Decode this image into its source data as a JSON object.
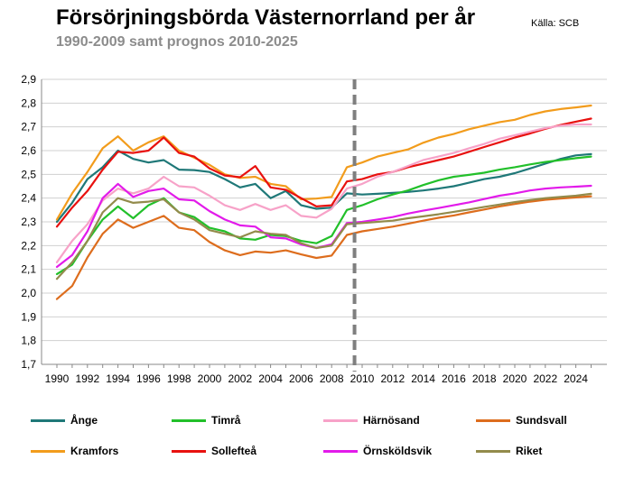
{
  "chart_data": {
    "type": "line",
    "title": "Försörjningsbörda Västernorrland per år",
    "subtitle": "1990-2009 samt prognos 2010-2025",
    "source": "Källa: SCB",
    "xlabel": "",
    "ylabel": "",
    "xlim": [
      1990,
      2025
    ],
    "ylim": [
      1.7,
      2.9
    ],
    "ytick_step": 0.1,
    "yticks": [
      "1,7",
      "1,8",
      "1,9",
      "2,0",
      "2,1",
      "2,2",
      "2,3",
      "2,4",
      "2,5",
      "2,6",
      "2,7",
      "2,8",
      "2,9"
    ],
    "xticks": [
      "1990",
      "1992",
      "1994",
      "1996",
      "1998",
      "2000",
      "2002",
      "2004",
      "2006",
      "2008",
      "2010",
      "2012",
      "2014",
      "2016",
      "2018",
      "2020",
      "2022",
      "2024"
    ],
    "grid": true,
    "forecast_divider_x": 2009.5,
    "legend_position": "bottom",
    "x": [
      1990,
      1991,
      1992,
      1993,
      1994,
      1995,
      1996,
      1997,
      1998,
      1999,
      2000,
      2001,
      2002,
      2003,
      2004,
      2005,
      2006,
      2007,
      2008,
      2009,
      2010,
      2011,
      2012,
      2013,
      2014,
      2015,
      2016,
      2017,
      2018,
      2019,
      2020,
      2021,
      2022,
      2023,
      2024,
      2025
    ],
    "series": [
      {
        "name": "Ånge",
        "color": "#1f7878",
        "values": [
          2.3,
          2.38,
          2.48,
          2.53,
          2.6,
          2.565,
          2.55,
          2.56,
          2.52,
          2.518,
          2.51,
          2.48,
          2.445,
          2.46,
          2.4,
          2.43,
          2.37,
          2.355,
          2.36,
          2.42,
          2.415,
          2.418,
          2.422,
          2.426,
          2.432,
          2.44,
          2.45,
          2.465,
          2.48,
          2.49,
          2.505,
          2.525,
          2.545,
          2.565,
          2.58,
          2.585
        ]
      },
      {
        "name": "Kramfors",
        "color": "#f29c1c",
        "values": [
          2.31,
          2.42,
          2.51,
          2.61,
          2.66,
          2.6,
          2.635,
          2.66,
          2.6,
          2.57,
          2.54,
          2.5,
          2.485,
          2.49,
          2.46,
          2.45,
          2.395,
          2.398,
          2.405,
          2.53,
          2.55,
          2.575,
          2.59,
          2.605,
          2.633,
          2.655,
          2.67,
          2.69,
          2.705,
          2.72,
          2.73,
          2.75,
          2.765,
          2.775,
          2.782,
          2.79
        ]
      },
      {
        "name": "Timrå",
        "color": "#22c02a",
        "values": [
          2.08,
          2.12,
          2.22,
          2.31,
          2.365,
          2.315,
          2.37,
          2.4,
          2.34,
          2.32,
          2.275,
          2.26,
          2.23,
          2.225,
          2.245,
          2.24,
          2.22,
          2.21,
          2.24,
          2.35,
          2.37,
          2.395,
          2.415,
          2.432,
          2.455,
          2.475,
          2.49,
          2.498,
          2.507,
          2.52,
          2.53,
          2.542,
          2.552,
          2.56,
          2.568,
          2.575
        ]
      },
      {
        "name": "Sollefteå",
        "color": "#e8110f",
        "values": [
          2.28,
          2.36,
          2.43,
          2.52,
          2.595,
          2.59,
          2.6,
          2.655,
          2.59,
          2.575,
          2.525,
          2.495,
          2.488,
          2.535,
          2.445,
          2.435,
          2.4,
          2.365,
          2.37,
          2.47,
          2.48,
          2.5,
          2.51,
          2.53,
          2.545,
          2.56,
          2.575,
          2.595,
          2.615,
          2.635,
          2.655,
          2.672,
          2.692,
          2.708,
          2.722,
          2.735
        ]
      },
      {
        "name": "Härnösand",
        "color": "#f7a2c8",
        "values": [
          2.13,
          2.22,
          2.29,
          2.39,
          2.44,
          2.42,
          2.44,
          2.49,
          2.45,
          2.445,
          2.41,
          2.37,
          2.35,
          2.375,
          2.35,
          2.37,
          2.325,
          2.318,
          2.355,
          2.44,
          2.46,
          2.49,
          2.51,
          2.535,
          2.56,
          2.575,
          2.59,
          2.61,
          2.628,
          2.65,
          2.665,
          2.68,
          2.695,
          2.705,
          2.71,
          2.71
        ]
      },
      {
        "name": "Örnsköldsvik",
        "color": "#e21bea",
        "values": [
          2.11,
          2.16,
          2.26,
          2.4,
          2.46,
          2.405,
          2.43,
          2.44,
          2.395,
          2.39,
          2.345,
          2.31,
          2.285,
          2.28,
          2.235,
          2.23,
          2.205,
          2.19,
          2.205,
          2.295,
          2.3,
          2.31,
          2.32,
          2.335,
          2.347,
          2.358,
          2.37,
          2.382,
          2.396,
          2.41,
          2.42,
          2.432,
          2.44,
          2.445,
          2.448,
          2.452
        ]
      },
      {
        "name": "Sundsvall",
        "color": "#dd6d1d",
        "values": [
          1.975,
          2.03,
          2.15,
          2.25,
          2.31,
          2.275,
          2.3,
          2.325,
          2.275,
          2.265,
          2.215,
          2.18,
          2.16,
          2.175,
          2.17,
          2.18,
          2.163,
          2.148,
          2.158,
          2.245,
          2.26,
          2.27,
          2.28,
          2.292,
          2.305,
          2.317,
          2.327,
          2.34,
          2.352,
          2.365,
          2.375,
          2.385,
          2.393,
          2.398,
          2.403,
          2.408
        ]
      },
      {
        "name": "Riket",
        "color": "#938b4b",
        "values": [
          2.06,
          2.13,
          2.22,
          2.34,
          2.4,
          2.38,
          2.385,
          2.395,
          2.34,
          2.31,
          2.265,
          2.25,
          2.235,
          2.26,
          2.25,
          2.245,
          2.21,
          2.19,
          2.2,
          2.29,
          2.295,
          2.3,
          2.305,
          2.315,
          2.323,
          2.332,
          2.342,
          2.352,
          2.363,
          2.373,
          2.383,
          2.392,
          2.4,
          2.405,
          2.41,
          2.418
        ]
      }
    ],
    "legend_order": [
      "Ånge",
      "Timrå",
      "Härnösand",
      "Sundsvall",
      "Kramfors",
      "Sollefteå",
      "Örnsköldsvik",
      "Riket"
    ]
  }
}
